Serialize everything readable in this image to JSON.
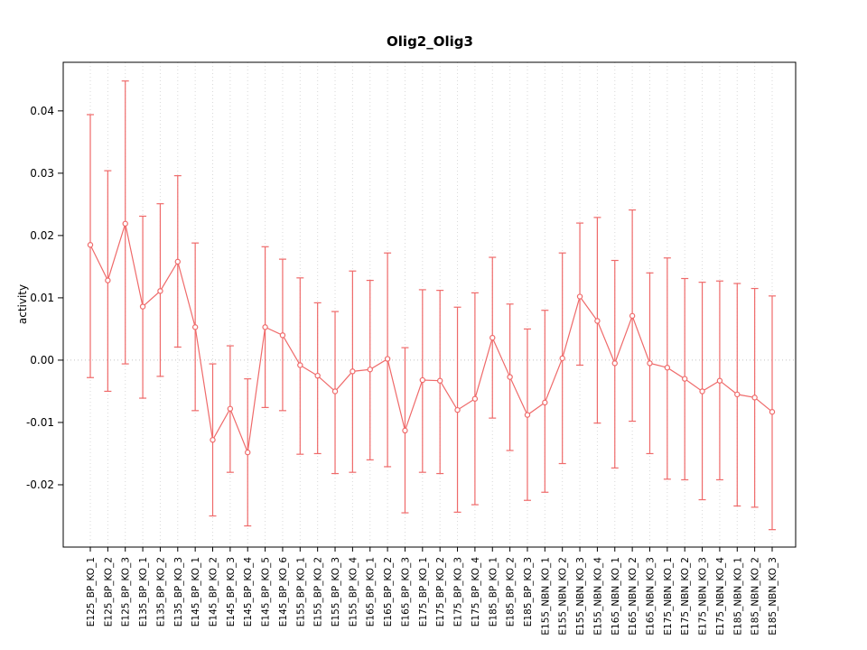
{
  "chart_data": {
    "type": "line",
    "title": "Olig2_Olig3",
    "ylabel": "activity",
    "ylim": [
      -0.03,
      0.0478
    ],
    "yticks": [
      -0.02,
      -0.01,
      0.0,
      0.01,
      0.02,
      0.03,
      0.04
    ],
    "grid": true,
    "color": "#ef6a6a",
    "grid_color": "#d9d9d9",
    "zero_line_color": "#c4c4c4",
    "categories": [
      "E125_BP_KO_1",
      "E125_BP_KO_2",
      "E125_BP_KO_3",
      "E135_BP_KO_1",
      "E135_BP_KO_2",
      "E135_BP_KO_3",
      "E145_BP_KO_1",
      "E145_BP_KO_2",
      "E145_BP_KO_3",
      "E145_BP_KO_4",
      "E145_BP_KO_5",
      "E145_BP_KO_6",
      "E155_BP_KO_1",
      "E155_BP_KO_2",
      "E155_BP_KO_3",
      "E155_BP_KO_4",
      "E165_BP_KO_1",
      "E165_BP_KO_2",
      "E165_BP_KO_3",
      "E175_BP_KO_1",
      "E175_BP_KO_2",
      "E175_BP_KO_3",
      "E175_BP_KO_4",
      "E185_BP_KO_1",
      "E185_BP_KO_2",
      "E185_BP_KO_3",
      "E155_NBN_KO_1",
      "E155_NBN_KO_2",
      "E155_NBN_KO_3",
      "E155_NBN_KO_4",
      "E165_NBN_KO_1",
      "E165_NBN_KO_2",
      "E165_NBN_KO_3",
      "E175_NBN_KO_1",
      "E175_NBN_KO_2",
      "E175_NBN_KO_3",
      "E175_NBN_KO_4",
      "E185_NBN_KO_1",
      "E185_NBN_KO_2",
      "E185_NBN_KO_3"
    ],
    "values": [
      0.0185,
      0.0128,
      0.0219,
      0.0086,
      0.0111,
      0.0158,
      0.0053,
      -0.0128,
      -0.0078,
      -0.0148,
      0.0053,
      0.004,
      -0.0008,
      -0.0025,
      -0.005,
      -0.0018,
      -0.0015,
      0.0002,
      -0.0113,
      -0.0032,
      -0.0033,
      -0.008,
      -0.0062,
      0.0036,
      -0.0027,
      -0.0088,
      -0.0068,
      0.0003,
      0.0102,
      0.0063,
      -0.0005,
      0.0071,
      -0.0005,
      -0.0012,
      -0.003,
      -0.005,
      -0.0033,
      -0.0055,
      -0.006,
      -0.0083
    ],
    "err_low": [
      -0.0028,
      -0.005,
      -0.0006,
      -0.0061,
      -0.0026,
      0.0021,
      -0.0081,
      -0.025,
      -0.018,
      -0.0266,
      -0.0076,
      -0.0081,
      -0.0151,
      -0.015,
      -0.0182,
      -0.018,
      -0.016,
      -0.0171,
      -0.0245,
      -0.018,
      -0.0182,
      -0.0244,
      -0.0232,
      -0.0093,
      -0.0145,
      -0.0225,
      -0.0212,
      -0.0166,
      -0.0008,
      -0.0101,
      -0.0173,
      -0.0098,
      -0.015,
      -0.0191,
      -0.0192,
      -0.0224,
      -0.0192,
      -0.0234,
      -0.0236,
      -0.0272
    ],
    "err_high": [
      0.0394,
      0.0304,
      0.0448,
      0.0231,
      0.0251,
      0.0296,
      0.0188,
      -0.0006,
      0.0023,
      -0.003,
      0.0182,
      0.0162,
      0.0132,
      0.0092,
      0.0078,
      0.0143,
      0.0128,
      0.0172,
      0.002,
      0.0113,
      0.0112,
      0.0085,
      0.0108,
      0.0165,
      0.009,
      0.005,
      0.008,
      0.0172,
      0.022,
      0.0229,
      0.016,
      0.0241,
      0.014,
      0.0164,
      0.0131,
      0.0125,
      0.0127,
      0.0123,
      0.0115,
      0.0103
    ]
  }
}
